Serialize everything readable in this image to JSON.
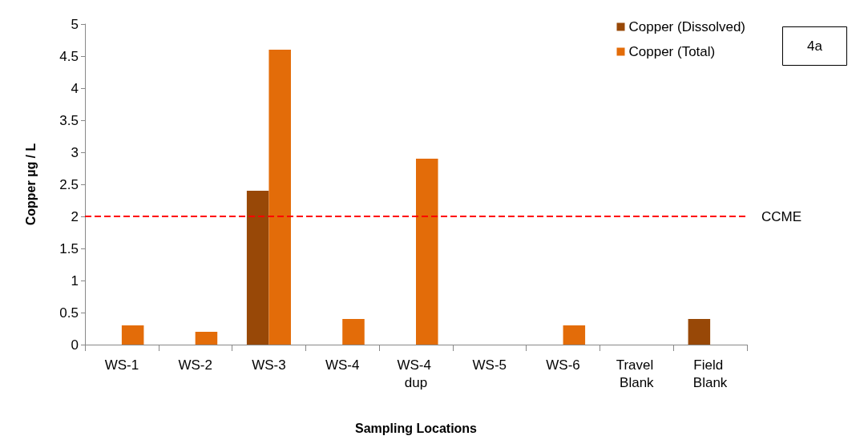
{
  "chart_data": {
    "type": "bar",
    "xlabel": "Sampling Locations",
    "ylabel": "Copper µg / L",
    "categories": [
      "WS-1",
      "WS-2",
      "WS-3",
      "WS-4",
      "WS-4 dup",
      "WS-5",
      "WS-6",
      "Travel Blank",
      "Field Blank"
    ],
    "series": [
      {
        "name": "Copper (Dissolved)",
        "color": "#984807",
        "values": [
          null,
          null,
          2.4,
          null,
          null,
          null,
          null,
          null,
          0.4
        ]
      },
      {
        "name": "Copper (Total)",
        "color": "#e36c09",
        "values": [
          0.3,
          0.2,
          4.6,
          0.4,
          2.9,
          null,
          0.3,
          null,
          null
        ]
      }
    ],
    "ylim": [
      0,
      5
    ],
    "yticks": [
      0,
      0.5,
      1,
      1.5,
      2,
      2.5,
      3,
      3.5,
      4,
      4.5,
      5
    ],
    "grid": false,
    "legend": "top right",
    "ref_lines": [
      {
        "axis": "y",
        "value": 2,
        "label": "CCME",
        "color": "#ff0000",
        "line_style": "dashed"
      }
    ],
    "annotations": [
      "4a"
    ]
  }
}
